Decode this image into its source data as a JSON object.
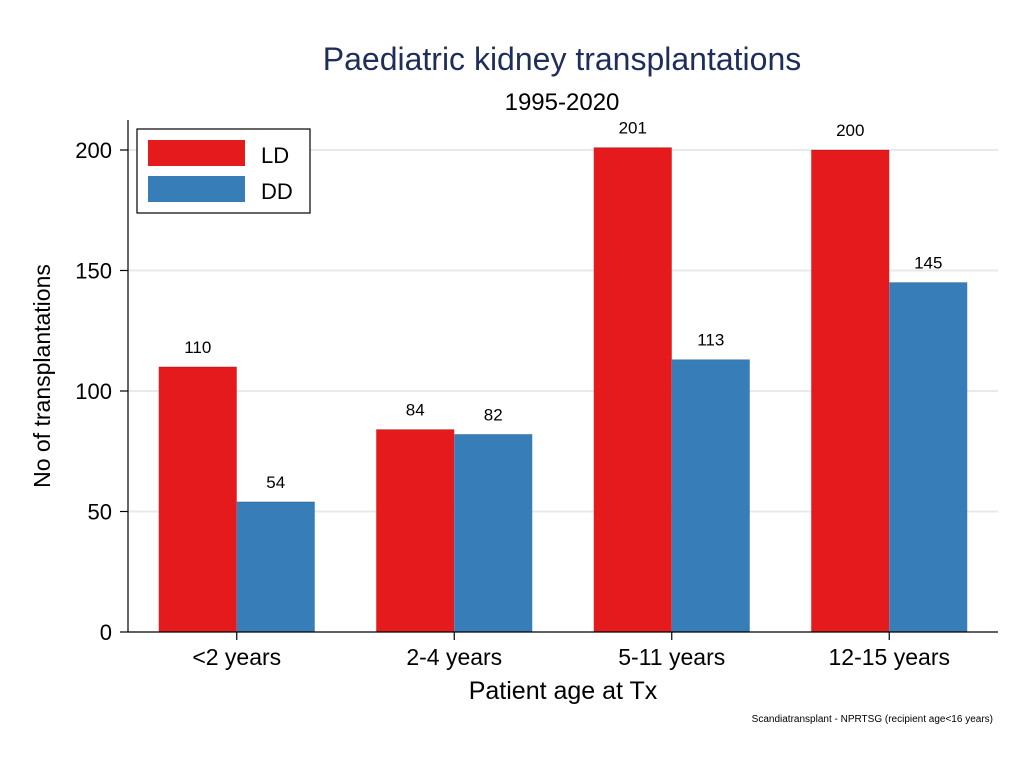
{
  "chart_data": {
    "type": "bar",
    "title": "Paediatric kidney transplantations",
    "subtitle": "1995-2020",
    "xlabel": "Patient age at Tx",
    "ylabel": "No of transplantations",
    "categories": [
      "<2 years",
      "2-4 years",
      "5-11 years",
      "12-15 years"
    ],
    "series": [
      {
        "name": "LD",
        "color": "#e41a1c",
        "values": [
          110,
          84,
          201,
          200
        ]
      },
      {
        "name": "DD",
        "color": "#377eb8",
        "values": [
          54,
          82,
          113,
          145
        ]
      }
    ],
    "ylim": [
      0,
      210
    ],
    "yticks": [
      0,
      50,
      100,
      150,
      200
    ],
    "grid": true,
    "legend": "top-left",
    "note": "Scandiatransplant - NPRTSG (recipient age<16 years)",
    "title_color": "#1f2d5a"
  }
}
